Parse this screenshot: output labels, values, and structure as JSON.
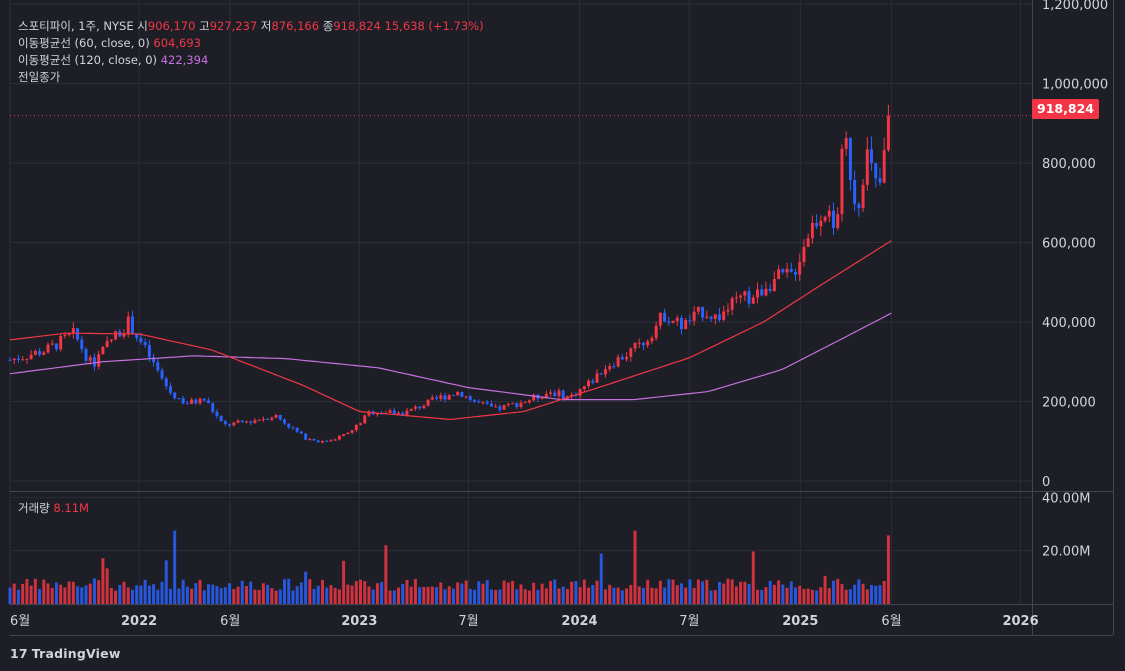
{
  "legend": {
    "symbol": "스포티파이, 1주, NYSE",
    "open_label": "시",
    "open": "906,170",
    "high_label": "고",
    "high": "927,237",
    "low_label": "저",
    "low": "876,166",
    "close_label": "종",
    "close": "918,824",
    "change": "15,638 (+1.73%)",
    "ma60_label": "이동평균선 (60, close, 0)",
    "ma60_value": "604,693",
    "ma120_label": "이동평균선 (120, close, 0)",
    "ma120_value": "422,394",
    "prev_close_label": "전일종가"
  },
  "volume_legend": {
    "label": "거래량",
    "value": "8.11M"
  },
  "price_tag": "918,824",
  "brand": {
    "logo": "17",
    "name": "TradingView"
  },
  "colors": {
    "up": "#f23645",
    "down": "#2962ff",
    "ma60": "#f23645",
    "ma120": "#c770e0",
    "background": "#1e1f26"
  },
  "chart_data": {
    "type": "candlestick",
    "timeframe": "1W",
    "price_axis": {
      "ticks": [
        0,
        200000,
        400000,
        600000,
        800000,
        1000000,
        1200000
      ],
      "tick_labels": [
        "0",
        "200,000",
        "400,000",
        "600,000",
        "800,000",
        "1,000,000",
        "1,200,000"
      ],
      "ylim": [
        -25000,
        1210000
      ]
    },
    "volume_axis": {
      "ticks": [
        20000000,
        40000000
      ],
      "tick_labels": [
        "20.00M",
        "40.00M"
      ],
      "ylim": [
        0,
        42000000
      ]
    },
    "x_axis": {
      "labels": [
        "6월",
        "2022",
        "6월",
        "2023",
        "7월",
        "2024",
        "7월",
        "2025",
        "6월",
        "2026"
      ],
      "label_dates": [
        "2021-06-01",
        "2022-01-01",
        "2022-06-01",
        "2023-01-01",
        "2023-07-01",
        "2024-01-01",
        "2024-07-01",
        "2025-01-01",
        "2025-06-01",
        "2026-01-01"
      ],
      "range": [
        "2021-06-01",
        "2026-01-20"
      ]
    },
    "price_keypoints": {
      "dates": [
        "2021-06-01",
        "2021-08-01",
        "2021-09-15",
        "2021-10-15",
        "2021-11-15",
        "2021-12-15",
        "2022-01-15",
        "2022-02-20",
        "2022-03-20",
        "2022-04-20",
        "2022-05-20",
        "2022-07-01",
        "2022-08-15",
        "2022-10-01",
        "2022-11-01",
        "2022-12-15",
        "2023-01-20",
        "2023-03-15",
        "2023-05-15",
        "2023-06-15",
        "2023-07-10",
        "2023-08-15",
        "2023-10-01",
        "2023-11-15",
        "2023-12-15",
        "2024-01-20",
        "2024-02-15",
        "2024-03-20",
        "2024-04-20",
        "2024-05-20",
        "2024-06-20",
        "2024-07-25",
        "2024-08-15",
        "2024-09-20",
        "2024-10-20",
        "2024-11-05",
        "2024-11-25",
        "2024-12-20",
        "2025-01-15",
        "2025-02-10",
        "2025-02-28",
        "2025-03-15",
        "2025-04-05",
        "2025-04-20",
        "2025-05-10",
        "2025-05-30"
      ],
      "closes": [
        305000,
        330000,
        370000,
        290000,
        355000,
        400000,
        320000,
        225000,
        195000,
        205000,
        140000,
        150000,
        165000,
        110000,
        98000,
        120000,
        175000,
        170000,
        210000,
        225000,
        200000,
        180000,
        200000,
        225000,
        210000,
        250000,
        290000,
        320000,
        355000,
        420000,
        390000,
        430000,
        410000,
        455000,
        465000,
        495000,
        510000,
        520000,
        630000,
        690000,
        620000,
        870000,
        680000,
        830000,
        720000,
        905000
      ]
    },
    "ma60": {
      "dates": [
        "2021-06-01",
        "2021-09-01",
        "2022-01-01",
        "2022-05-01",
        "2022-10-01",
        "2023-01-01",
        "2023-06-01",
        "2023-10-01",
        "2024-02-01",
        "2024-07-01",
        "2024-11-01",
        "2025-02-01",
        "2025-06-01"
      ],
      "values": [
        355000,
        372000,
        370000,
        330000,
        240000,
        175000,
        155000,
        175000,
        235000,
        310000,
        400000,
        490000,
        604693
      ]
    },
    "ma120": {
      "dates": [
        "2021-06-01",
        "2021-11-01",
        "2022-04-01",
        "2022-09-01",
        "2023-02-01",
        "2023-07-01",
        "2023-12-01",
        "2024-04-01",
        "2024-08-01",
        "2024-12-01",
        "2025-03-01",
        "2025-06-01"
      ],
      "values": [
        270000,
        300000,
        315000,
        308000,
        285000,
        235000,
        205000,
        205000,
        225000,
        280000,
        350000,
        422394
      ]
    },
    "last_close": 918824
  }
}
